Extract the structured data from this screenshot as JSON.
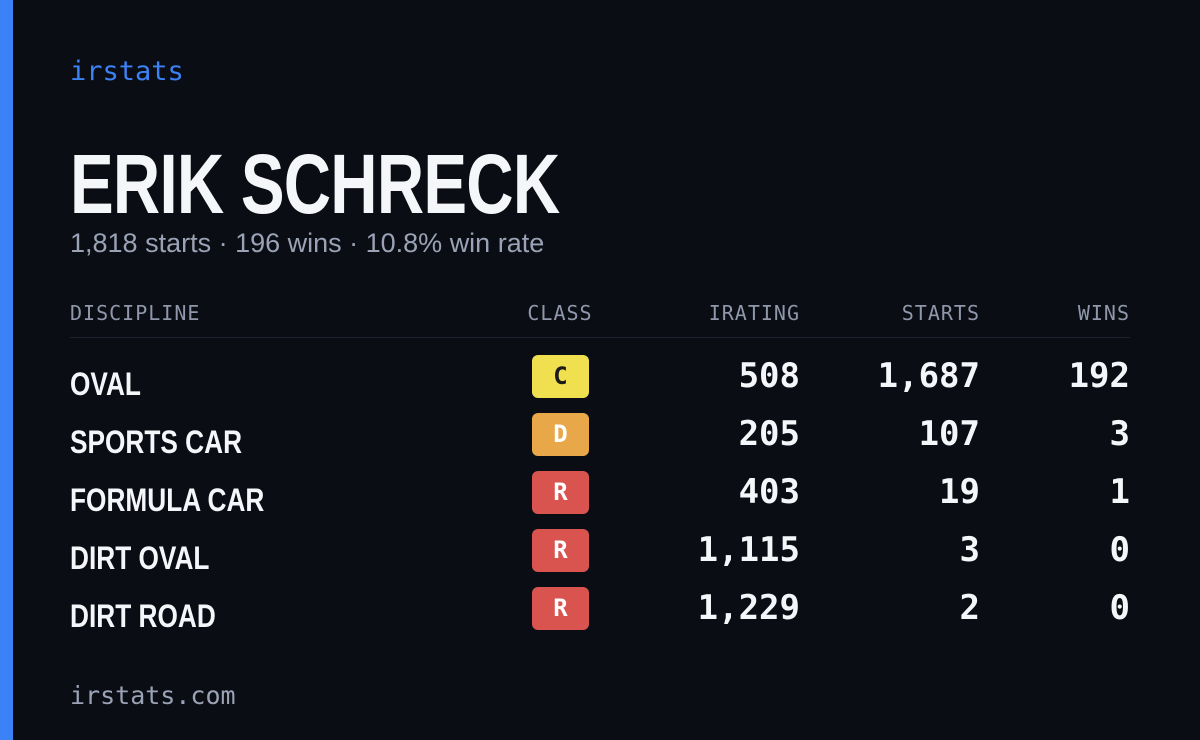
{
  "brand": "irstats",
  "name": "ERIK SCHRECK",
  "summary": "1,818 starts · 196 wins · 10.8% win rate",
  "table": {
    "headers": [
      "DISCIPLINE",
      "CLASS",
      "IRATING",
      "STARTS",
      "WINS"
    ],
    "rows": [
      [
        "OVAL",
        "C",
        "508",
        "1,687",
        "192"
      ],
      [
        "SPORTS CAR",
        "D",
        "205",
        "107",
        "3"
      ],
      [
        "FORMULA CAR",
        "R",
        "403",
        "19",
        "1"
      ],
      [
        "DIRT OVAL",
        "R",
        "1,115",
        "3",
        "0"
      ],
      [
        "DIRT ROAD",
        "R",
        "1,229",
        "2",
        "0"
      ]
    ],
    "class_colors": {
      "C": "#f0e050",
      "D": "#e8a84a",
      "R": "#d9534f"
    }
  },
  "footer": "irstats.com"
}
